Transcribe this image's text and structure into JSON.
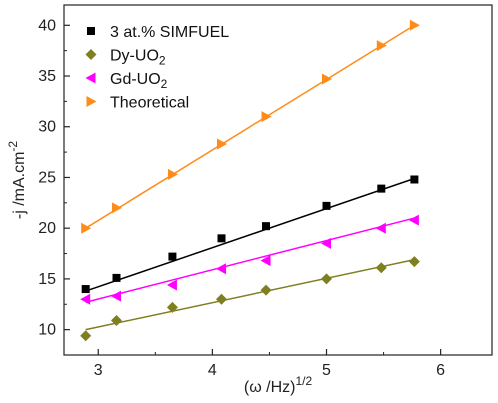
{
  "chart_data": {
    "type": "scatter",
    "title": "",
    "xlabel": "(ω /Hz)",
    "xlabel_sup": "1/2",
    "ylabel": "-j /mA.cm",
    "ylabel_sup": "-2",
    "xlim": [
      2.7,
      6.45
    ],
    "ylim": [
      7.5,
      42
    ],
    "xticks": [
      3,
      4,
      5,
      6
    ],
    "yticks": [
      10,
      15,
      20,
      25,
      30,
      35,
      40
    ],
    "legend_position": "top-left",
    "series": [
      {
        "name": "3 at.% SIMFUEL",
        "name_sub": "",
        "marker": "square",
        "color": "#000000",
        "x": [
          2.89,
          3.16,
          3.65,
          4.08,
          4.47,
          5.0,
          5.48,
          5.77
        ],
        "y": [
          14.0,
          15.1,
          17.2,
          19.0,
          20.2,
          22.2,
          23.9,
          24.8
        ],
        "fit": [
          13.8,
          24.9
        ]
      },
      {
        "name": "Dy-UO",
        "name_sub": "2",
        "marker": "diamond",
        "color": "#7f7f1f",
        "x": [
          2.89,
          3.16,
          3.65,
          4.08,
          4.47,
          5.0,
          5.48,
          5.77
        ],
        "y": [
          9.4,
          10.9,
          12.2,
          13.0,
          13.9,
          15.0,
          16.1,
          16.7
        ],
        "fit": [
          10.0,
          16.9
        ]
      },
      {
        "name": "Gd-UO",
        "name_sub": "2",
        "marker": "triangle-left",
        "color": "#ff00ff",
        "x": [
          2.89,
          3.16,
          3.65,
          4.08,
          4.47,
          5.0,
          5.48,
          5.77
        ],
        "y": [
          13.0,
          13.3,
          14.4,
          16.0,
          16.8,
          18.5,
          20.0,
          20.8
        ],
        "fit": [
          12.7,
          21.0
        ]
      },
      {
        "name": "Theoretical",
        "name_sub": "",
        "marker": "triangle-right",
        "color": "#ff8c1a",
        "x": [
          2.89,
          3.16,
          3.65,
          4.08,
          4.47,
          5.0,
          5.48,
          5.77
        ],
        "y": [
          20.0,
          22.0,
          25.3,
          28.3,
          31.0,
          34.7,
          38.0,
          40.0
        ],
        "fit": [
          20.0,
          40.0
        ]
      }
    ]
  }
}
